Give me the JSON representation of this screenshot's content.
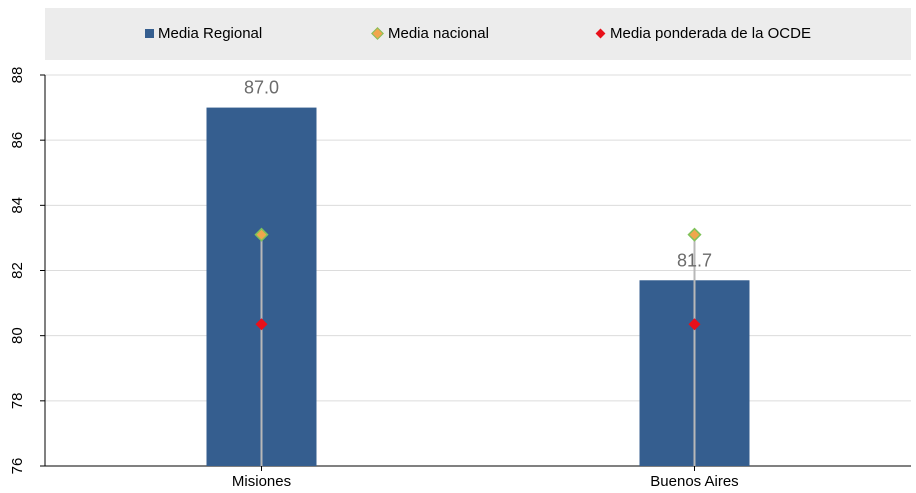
{
  "legend": {
    "regional": "Media Regional",
    "nacional": "Media nacional",
    "ocde": "Media ponderada de la OCDE"
  },
  "colors": {
    "bar": "#355e8f",
    "nacional_fill": "#f0a64c",
    "nacional_stroke": "#7fc25a",
    "ocde": "#e8101a",
    "connector": "#b8b8b8",
    "legend_bg": "#ececec",
    "label": "#6b6b6b"
  },
  "chart_data": {
    "type": "bar",
    "categories": [
      "Misiones",
      "Buenos Aires"
    ],
    "series": [
      {
        "name": "Media Regional",
        "values": [
          87.0,
          81.7
        ],
        "value_labels": [
          "87.0",
          "81.7"
        ]
      },
      {
        "name": "Media nacional",
        "values": [
          83.1,
          83.1
        ]
      },
      {
        "name": "Media ponderada de la OCDE",
        "values": [
          80.35,
          80.35
        ]
      }
    ],
    "ylim": [
      76,
      88
    ],
    "yticks": [
      76,
      78,
      80,
      82,
      84,
      86,
      88
    ],
    "grid": true,
    "legend_position": "top",
    "title": "",
    "xlabel": "",
    "ylabel": ""
  }
}
